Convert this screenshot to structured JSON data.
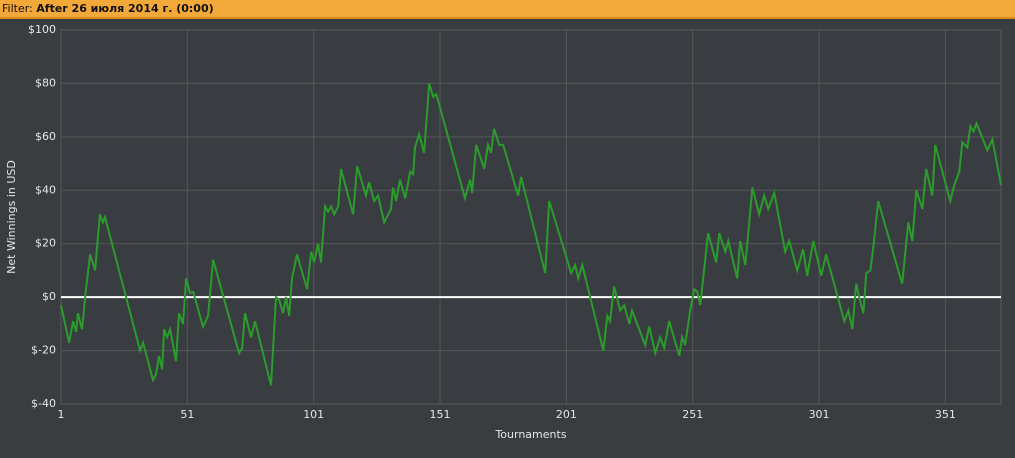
{
  "filter_label": "Filter:",
  "filter_value": "After 26 июля 2014 г. (0:00)",
  "chart_data": {
    "type": "line",
    "x_label": "Tournaments",
    "y_label": "Net Winnings in USD",
    "color": "#2b9c2b",
    "grid": true,
    "xlim": [
      1,
      373
    ],
    "ylim": [
      -40,
      100
    ],
    "xticks": [
      1,
      51,
      101,
      151,
      201,
      251,
      301,
      351
    ],
    "yticks": [
      {
        "value": -40,
        "label": "$-40"
      },
      {
        "value": -20,
        "label": "$-20"
      },
      {
        "value": 0,
        "label": "$0"
      },
      {
        "value": 20,
        "label": "$20"
      },
      {
        "value": 40,
        "label": "$40"
      },
      {
        "value": 60,
        "label": "$60"
      },
      {
        "value": 80,
        "label": "$80"
      },
      {
        "value": 100,
        "label": "$100"
      }
    ],
    "x": [
      1,
      4.2,
      5.8,
      7,
      7.7,
      9.3,
      10.9,
      12.5,
      14.5,
      16.4,
      17.6,
      18.4,
      32.3,
      33.5,
      37.4,
      38.6,
      39.8,
      41,
      41.8,
      43,
      44.2,
      46.5,
      47.7,
      49.3,
      50.5,
      52.1,
      53.3,
      57.2,
      59.2,
      61.2,
      71.5,
      72.7,
      73.8,
      76.2,
      77.8,
      84.1,
      86.1,
      87.3,
      88.9,
      90.1,
      91.3,
      92.4,
      94.4,
      98.4,
      100,
      101.2,
      102.7,
      103.9,
      105.5,
      106.7,
      107.9,
      109.1,
      110.7,
      111.8,
      116.6,
      118.2,
      121.7,
      122.9,
      124.9,
      126.5,
      128.9,
      131.6,
      132.4,
      133.6,
      135.2,
      137.2,
      139.2,
      140.4,
      141.1,
      142.7,
      144.7,
      146.7,
      148.3,
      149.5,
      151,
      160.9,
      162.9,
      163.7,
      165.3,
      168.5,
      170,
      171.2,
      172.4,
      174.4,
      176,
      181.9,
      183.1,
      192.6,
      194.2,
      202.9,
      204.5,
      205.7,
      207.3,
      215.6,
      217.2,
      218.3,
      219.9,
      222.3,
      223.9,
      225.9,
      227,
      232.2,
      233.8,
      236.2,
      238.1,
      239.7,
      241.7,
      245.7,
      246.8,
      248,
      250,
      251.6,
      252.8,
      254,
      257.1,
      260.3,
      261.5,
      263.9,
      265.1,
      268.6,
      269.8,
      271.8,
      274.6,
      277.3,
      279.3,
      280.9,
      283.3,
      287.6,
      289.2,
      292.4,
      294.7,
      296.3,
      298.7,
      301.9,
      303.8,
      311,
      312.6,
      314.2,
      315.7,
      316.9,
      318.5,
      319.7,
      321.3,
      322.5,
      324.4,
      333.9,
      336.3,
      337.9,
      339.5,
      341.9,
      343.4,
      345.8,
      347,
      352.9,
      354.5,
      356.5,
      357.7,
      359.7,
      360.9,
      362.1,
      363.3,
      367.6,
      369.6,
      373
    ],
    "values": [
      -3,
      -17,
      -9,
      -13,
      -6,
      -12,
      3,
      16,
      10,
      31,
      28,
      30,
      -20,
      -17,
      -31,
      -29,
      -22,
      -27,
      -12,
      -15,
      -12,
      -24,
      -6,
      -10,
      7,
      1.5,
      2,
      -11,
      -7,
      14,
      -21,
      -19,
      -6,
      -15,
      -9,
      -33,
      0,
      -1,
      -6,
      0,
      -7,
      7,
      16,
      3,
      17,
      13,
      20,
      13,
      34,
      32,
      34,
      31,
      34,
      48,
      31,
      49,
      38,
      43,
      36,
      38,
      28,
      33,
      41,
      36,
      44,
      37,
      47,
      46,
      56,
      61,
      54,
      80,
      75,
      76,
      71,
      37,
      44,
      39,
      57,
      48,
      57,
      54,
      63,
      57,
      57,
      38,
      45,
      9,
      36,
      9,
      12,
      7,
      12,
      -20,
      -7,
      -9,
      4,
      -5,
      -3,
      -10,
      -5,
      -18,
      -11,
      -21,
      -15,
      -19,
      -9,
      -22,
      -15,
      -18,
      -5,
      3,
      2,
      -3,
      24,
      13,
      24,
      17,
      21,
      7,
      21,
      12,
      41,
      31,
      38,
      33,
      39,
      17,
      21,
      10,
      18,
      8,
      21,
      8,
      16,
      -9,
      -5,
      -12,
      5,
      0,
      -6,
      9,
      10,
      19,
      36,
      5,
      28,
      21,
      40,
      33,
      48,
      38,
      57,
      36,
      42,
      47,
      58,
      56,
      64,
      62,
      65,
      55,
      59,
      42
    ]
  }
}
